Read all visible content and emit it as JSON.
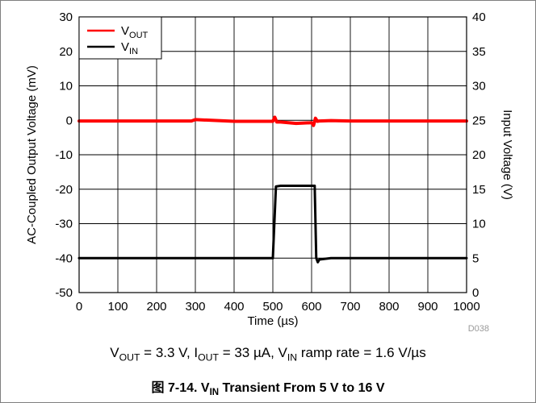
{
  "chart_data": {
    "type": "line",
    "title": "",
    "xlabel": "Time (µs)",
    "ylabel": "AC-Coupled Output Voltage (mV)",
    "y2label": "Input Voltage (V)",
    "xlim": [
      0,
      1000
    ],
    "ylim": [
      -50,
      30
    ],
    "y2lim": [
      0,
      40
    ],
    "xticks": [
      0,
      100,
      200,
      300,
      400,
      500,
      600,
      700,
      800,
      900,
      1000
    ],
    "yticks": [
      -50,
      -40,
      -30,
      -20,
      -10,
      0,
      10,
      20,
      30
    ],
    "y2ticks": [
      0,
      5,
      10,
      15,
      20,
      25,
      30,
      35,
      40
    ],
    "grid": true,
    "legend_position": "top-left",
    "series": [
      {
        "name": "VOUT",
        "legend_main": "V",
        "legend_sub": "OUT",
        "axis": "left",
        "color": "#ff0000",
        "x": [
          0,
          100,
          200,
          290,
          300,
          400,
          490,
          500,
          505,
          510,
          520,
          560,
          600,
          605,
          610,
          615,
          620,
          650,
          700,
          800,
          900,
          1000
        ],
        "y": [
          -0.2,
          -0.2,
          -0.2,
          -0.2,
          0.2,
          -0.3,
          -0.3,
          -0.3,
          0.9,
          -0.5,
          -0.5,
          -0.9,
          -0.7,
          -1.5,
          0.6,
          -0.3,
          -0.2,
          -0.1,
          -0.2,
          -0.2,
          -0.2,
          -0.2
        ]
      },
      {
        "name": "VIN",
        "legend_main": "V",
        "legend_sub": "IN",
        "axis": "right",
        "color": "#000000",
        "x": [
          0,
          480,
          500,
          508,
          520,
          570,
          600,
          608,
          612,
          616,
          620,
          650,
          800,
          1000
        ],
        "y": [
          5,
          5,
          5,
          15.4,
          15.5,
          15.5,
          15.5,
          15.5,
          5,
          4.4,
          4.8,
          5,
          5,
          5
        ]
      }
    ]
  },
  "figure_code": "D038",
  "conditions": {
    "vout_main": "V",
    "vout_sub": "OUT",
    "vout_rest": " = 3.3 V, I",
    "iout_sub": "OUT",
    "iout_rest": " = 33 µA, V",
    "vin_sub": "IN",
    "vin_rest": " ramp rate = 1.6 V/µs"
  },
  "caption": {
    "prefix": "图 7-14. V",
    "sub": "IN",
    "rest": " Transient From 5 V to 16 V"
  }
}
